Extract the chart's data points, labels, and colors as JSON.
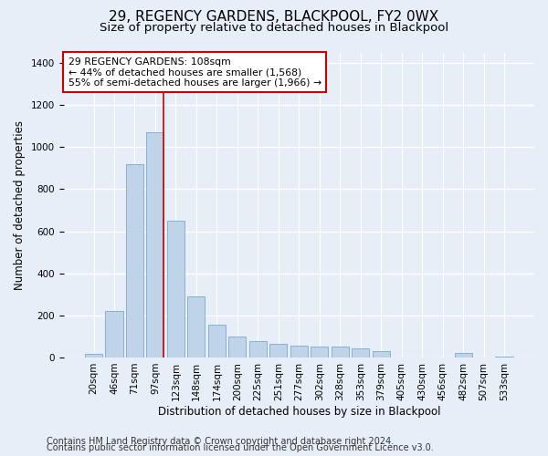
{
  "title": "29, REGENCY GARDENS, BLACKPOOL, FY2 0WX",
  "subtitle": "Size of property relative to detached houses in Blackpool",
  "xlabel": "Distribution of detached houses by size in Blackpool",
  "ylabel": "Number of detached properties",
  "categories": [
    "20sqm",
    "46sqm",
    "71sqm",
    "97sqm",
    "123sqm",
    "148sqm",
    "174sqm",
    "200sqm",
    "225sqm",
    "251sqm",
    "277sqm",
    "302sqm",
    "328sqm",
    "353sqm",
    "379sqm",
    "405sqm",
    "430sqm",
    "456sqm",
    "482sqm",
    "507sqm",
    "533sqm"
  ],
  "values": [
    18,
    220,
    920,
    1070,
    650,
    290,
    155,
    100,
    80,
    65,
    55,
    50,
    50,
    45,
    30,
    0,
    0,
    0,
    20,
    0,
    5
  ],
  "bar_color": "#bfd4e8",
  "bar_edge_color": "#7aaad0",
  "vline_color": "#cc0000",
  "vline_idx": 3,
  "annotation_text": "29 REGENCY GARDENS: 108sqm\n← 44% of detached houses are smaller (1,568)\n55% of semi-detached houses are larger (1,966) →",
  "annotation_box_facecolor": "white",
  "annotation_box_edgecolor": "#cc0000",
  "ylim": [
    0,
    1450
  ],
  "yticks": [
    0,
    200,
    400,
    600,
    800,
    1000,
    1200,
    1400
  ],
  "bg_color": "#e8eef7",
  "footer1": "Contains HM Land Registry data © Crown copyright and database right 2024.",
  "footer2": "Contains public sector information licensed under the Open Government Licence v3.0.",
  "title_fontsize": 11,
  "subtitle_fontsize": 9.5,
  "annotation_fontsize": 7.8,
  "tick_fontsize": 7.5,
  "axis_label_fontsize": 8.5,
  "footer_fontsize": 7.0
}
